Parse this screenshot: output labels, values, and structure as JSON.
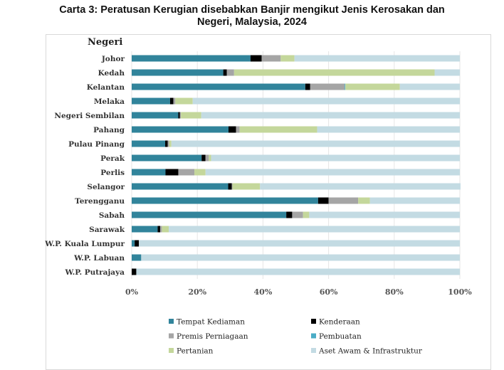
{
  "chart_data": {
    "type": "bar",
    "orientation": "horizontal",
    "stacked": "percent",
    "title": "Carta 3: Peratusan Kerugian disebabkan Banjir mengikut Jenis Kerosakan dan Negeri, Malaysia, 2024",
    "title_lines": [
      "Carta 3: Peratusan Kerugian disebabkan Banjir mengikut Jenis Kerosakan dan",
      "Negeri, Malaysia, 2024"
    ],
    "ylabel": "Negeri",
    "xlabel": "",
    "xlim": [
      0,
      100
    ],
    "xticks": [
      "0%",
      "20%",
      "40%",
      "60%",
      "80%",
      "100%"
    ],
    "grid": true,
    "legend_position": "bottom",
    "categories": [
      "Johor",
      "Kedah",
      "Kelantan",
      "Melaka",
      "Negeri Sembilan",
      "Pahang",
      "Pulau Pinang",
      "Perak",
      "Perlis",
      "Selangor",
      "Terengganu",
      "Sabah",
      "Sarawak",
      "W.P. Kuala Lumpur",
      "W.P. Labuan",
      "W.P. Putrajaya"
    ],
    "series": [
      {
        "name": "Tempat Kediaman",
        "color": "#31849b",
        "values": [
          36.2,
          27.9,
          52.9,
          11.7,
          14.2,
          29.5,
          10.2,
          21.3,
          10.3,
          29.4,
          56.8,
          47.1,
          7.9,
          0.9,
          2.9,
          0
        ]
      },
      {
        "name": "Kenderaan",
        "color": "#000000",
        "values": [
          3.4,
          1.1,
          1.5,
          1.0,
          0.5,
          2.3,
          0.8,
          1.2,
          3.9,
          1.1,
          3.2,
          1.8,
          0.8,
          1.3,
          0,
          1.4
        ]
      },
      {
        "name": "Premis Perniagaan",
        "color": "#a5a5a5",
        "values": [
          5.8,
          2.2,
          10.5,
          0.6,
          0.3,
          1.1,
          0.4,
          1.0,
          4.9,
          0.2,
          9.0,
          3.3,
          0.5,
          0,
          0,
          0
        ]
      },
      {
        "name": "Pembuatan",
        "color": "#4bacc6",
        "values": [
          0,
          0,
          0.2,
          0,
          0,
          0,
          0,
          0,
          0,
          0,
          0,
          0,
          0,
          0,
          0,
          0
        ]
      },
      {
        "name": "Pertanian",
        "color": "#c4d79b",
        "values": [
          4.2,
          61.1,
          16.6,
          5.3,
          6.2,
          23.6,
          0.7,
          0.7,
          3.4,
          8.4,
          3.6,
          1.9,
          2.1,
          0,
          0,
          0
        ]
      },
      {
        "name": "Aset Awam & Infrastruktur",
        "color": "#c3dbe3",
        "values": [
          50.4,
          7.7,
          18.3,
          81.4,
          78.8,
          43.5,
          87.9,
          75.8,
          77.5,
          61.1,
          27.4,
          45.9,
          88.7,
          97.8,
          97.1,
          98.6
        ]
      }
    ],
    "legend_order": [
      0,
      1,
      2,
      3,
      4,
      5
    ]
  }
}
